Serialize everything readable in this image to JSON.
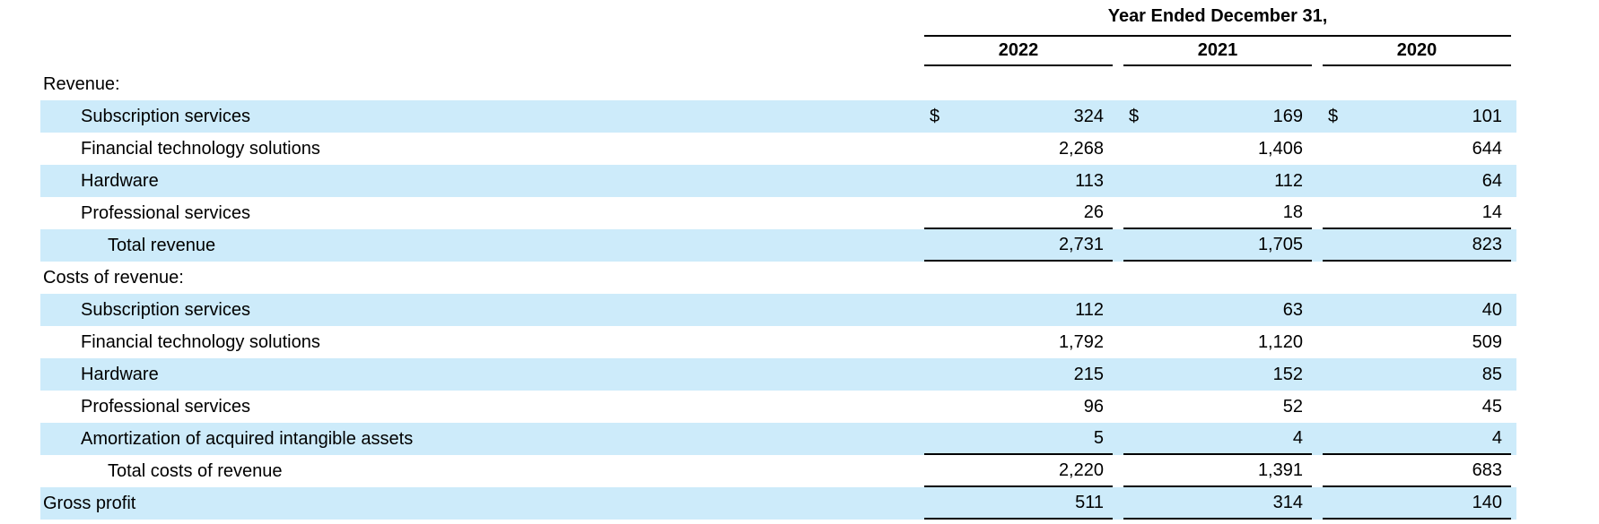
{
  "table": {
    "header": {
      "title": "Year Ended December 31,",
      "years": [
        "2022",
        "2021",
        "2020"
      ]
    },
    "colors": {
      "highlight": "#cdebfa",
      "rule": "#000000",
      "text": "#000000"
    },
    "rows": [
      {
        "label": "Revenue:",
        "indent": 0,
        "highlight": false,
        "dollar": false,
        "border_bottom": false,
        "values": [
          "",
          "",
          ""
        ]
      },
      {
        "label": "Subscription services",
        "indent": 1,
        "highlight": true,
        "dollar": true,
        "border_bottom": false,
        "values": [
          "324",
          "169",
          "101"
        ]
      },
      {
        "label": "Financial technology solutions",
        "indent": 1,
        "highlight": false,
        "dollar": false,
        "border_bottom": false,
        "values": [
          "2,268",
          "1,406",
          "644"
        ]
      },
      {
        "label": "Hardware",
        "indent": 1,
        "highlight": true,
        "dollar": false,
        "border_bottom": false,
        "values": [
          "113",
          "112",
          "64"
        ]
      },
      {
        "label": "Professional services",
        "indent": 1,
        "highlight": false,
        "dollar": false,
        "border_bottom": true,
        "values": [
          "26",
          "18",
          "14"
        ]
      },
      {
        "label": "Total revenue",
        "indent": 2,
        "highlight": true,
        "dollar": false,
        "border_bottom": true,
        "values": [
          "2,731",
          "1,705",
          "823"
        ]
      },
      {
        "label": "Costs of revenue:",
        "indent": 0,
        "highlight": false,
        "dollar": false,
        "border_bottom": false,
        "values": [
          "",
          "",
          ""
        ]
      },
      {
        "label": "Subscription services",
        "indent": 1,
        "highlight": true,
        "dollar": false,
        "border_bottom": false,
        "values": [
          "112",
          "63",
          "40"
        ]
      },
      {
        "label": "Financial technology solutions",
        "indent": 1,
        "highlight": false,
        "dollar": false,
        "border_bottom": false,
        "values": [
          "1,792",
          "1,120",
          "509"
        ]
      },
      {
        "label": "Hardware",
        "indent": 1,
        "highlight": true,
        "dollar": false,
        "border_bottom": false,
        "values": [
          "215",
          "152",
          "85"
        ]
      },
      {
        "label": "Professional services",
        "indent": 1,
        "highlight": false,
        "dollar": false,
        "border_bottom": false,
        "values": [
          "96",
          "52",
          "45"
        ]
      },
      {
        "label": "Amortization of acquired intangible assets",
        "indent": 1,
        "highlight": true,
        "dollar": false,
        "border_bottom": true,
        "values": [
          "5",
          "4",
          "4"
        ]
      },
      {
        "label": "Total costs of revenue",
        "indent": 2,
        "highlight": false,
        "dollar": false,
        "border_bottom": true,
        "values": [
          "2,220",
          "1,391",
          "683"
        ]
      },
      {
        "label": "Gross profit",
        "indent": 0,
        "highlight": true,
        "dollar": false,
        "border_bottom": true,
        "values": [
          "511",
          "314",
          "140"
        ]
      }
    ]
  }
}
